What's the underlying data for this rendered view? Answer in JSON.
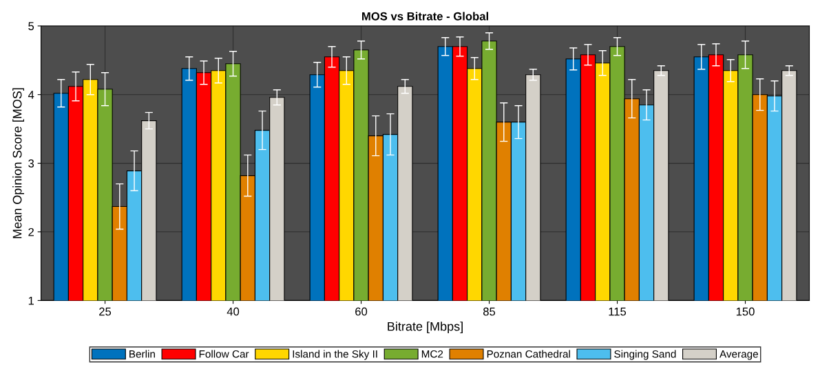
{
  "chart_data": {
    "type": "bar",
    "title": "MOS vs Bitrate - Global",
    "xlabel": "Bitrate [Mbps]",
    "ylabel": "Mean Opinion Score [MOS]",
    "categories": [
      "25",
      "40",
      "60",
      "85",
      "115",
      "150"
    ],
    "series": [
      {
        "name": "Berlin",
        "color": "#0072bd",
        "values": [
          4.02,
          4.38,
          4.29,
          4.7,
          4.52,
          4.55
        ],
        "errors": [
          0.2,
          0.17,
          0.18,
          0.13,
          0.16,
          0.18
        ]
      },
      {
        "name": "Follow Car",
        "color": "#ff0000",
        "values": [
          4.12,
          4.32,
          4.55,
          4.7,
          4.58,
          4.58
        ],
        "errors": [
          0.21,
          0.17,
          0.15,
          0.14,
          0.15,
          0.16
        ]
      },
      {
        "name": "Island in the Sky II",
        "color": "#ffd700",
        "values": [
          4.22,
          4.35,
          4.35,
          4.38,
          4.46,
          4.35
        ],
        "errors": [
          0.22,
          0.18,
          0.2,
          0.16,
          0.18,
          0.16
        ]
      },
      {
        "name": "MC2",
        "color": "#77ac30",
        "values": [
          4.08,
          4.45,
          4.65,
          4.78,
          4.7,
          4.58
        ],
        "errors": [
          0.24,
          0.18,
          0.13,
          0.12,
          0.13,
          0.2
        ]
      },
      {
        "name": "Poznan Cathedral",
        "color": "#e08000",
        "values": [
          2.37,
          2.82,
          3.4,
          3.6,
          3.94,
          4.0
        ],
        "errors": [
          0.33,
          0.3,
          0.29,
          0.28,
          0.28,
          0.23
        ]
      },
      {
        "name": "Singing Sand",
        "color": "#4dbeee",
        "values": [
          2.89,
          3.48,
          3.42,
          3.6,
          3.85,
          3.98
        ],
        "errors": [
          0.29,
          0.28,
          0.3,
          0.24,
          0.22,
          0.22
        ]
      },
      {
        "name": "Average",
        "color": "#d4d0c8",
        "values": [
          3.62,
          3.96,
          4.12,
          4.29,
          4.35,
          4.35
        ],
        "errors": [
          0.12,
          0.11,
          0.1,
          0.08,
          0.07,
          0.07
        ]
      }
    ],
    "ylim": [
      1,
      5
    ],
    "yticks": [
      1,
      2,
      3,
      4,
      5
    ],
    "grid": true,
    "legend": "bottom"
  }
}
